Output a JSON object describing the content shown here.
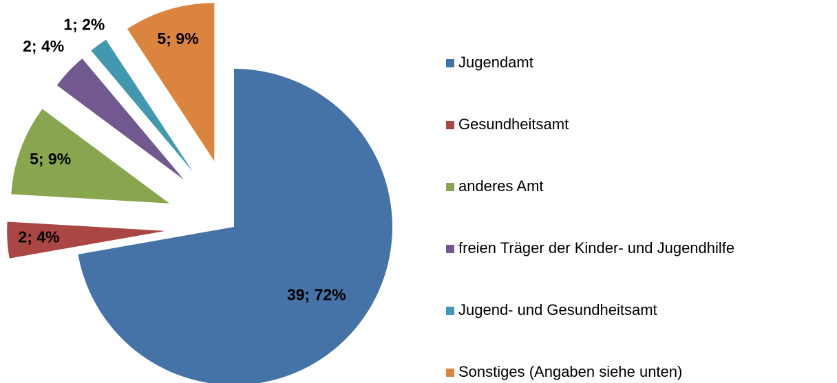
{
  "chart_data": {
    "type": "pie",
    "categories": [
      "Jugendamt",
      "Gesundheitsamt",
      "anderes Amt",
      "freien Träger der Kinder- und Jugendhilfe",
      "Jugend- und Gesundheitsamt",
      "Sonstiges (Angaben siehe unten)"
    ],
    "values": [
      39,
      2,
      5,
      2,
      1,
      5
    ],
    "value_labels": [
      "39; 72%",
      "2; 4%",
      "5; 9%",
      "2; 4%",
      "1; 2%",
      "5; 9%"
    ],
    "colors": [
      "#4572a7",
      "#aa4643",
      "#89a54e",
      "#71588f",
      "#4198af",
      "#db843d"
    ],
    "legend": "right"
  }
}
